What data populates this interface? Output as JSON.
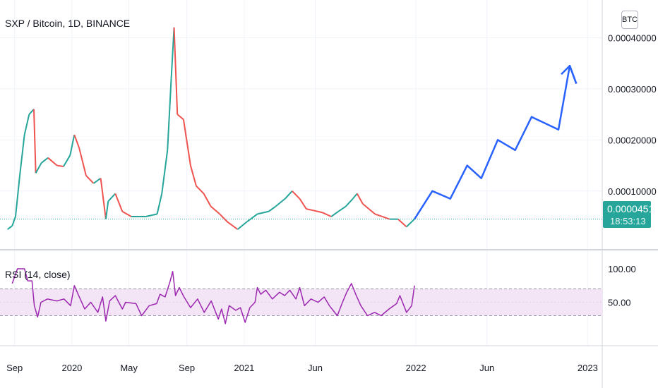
{
  "header": {
    "title": "SXP / Bitcoin, 1D, BINANCE",
    "currency_button": "BTC",
    "price_badge": "0.00004511",
    "countdown": "18:53:13"
  },
  "rsi_panel": {
    "title": "RSI (14, close)",
    "ticks": [
      "100.00",
      "50.00"
    ]
  },
  "colors": {
    "up": "#26a69a",
    "down": "#ef5350",
    "forecast": "#2962ff",
    "rsi_line": "#9c27b0",
    "rsi_band": "#f3e5f5",
    "last_price_line": "#26a69a"
  },
  "chart_data": [
    {
      "type": "line",
      "title": "SXP / Bitcoin, 1D, BINANCE",
      "y_axis_ticks": [
        "0.00040000",
        "0.00030000",
        "0.00020000",
        "0.00010000"
      ],
      "y_range": [
        1e-05,
        0.000424
      ],
      "x_tick_labels": [
        "Sep",
        "2020",
        "May",
        "Sep",
        "2021",
        "Jun",
        "2022",
        "Jun",
        "2023"
      ],
      "x_ticks": [
        "2019-09-01",
        "2020-01-01",
        "2020-05-01",
        "2020-09-01",
        "2021-01-01",
        "2021-06-01",
        "2022-01-01",
        "2022-06-01",
        "2023-01-01"
      ],
      "x_range": [
        "2019-08-01",
        "2023-02-01"
      ],
      "last_price": 4.511e-05,
      "series": [
        {
          "kind": "close",
          "points": [
            [
              "2019-08-17",
              2.5e-05
            ],
            [
              "2019-08-27",
              3.2e-05
            ],
            [
              "2019-09-03",
              5e-05
            ],
            [
              "2019-09-12",
              0.00013
            ],
            [
              "2019-09-22",
              0.00021
            ],
            [
              "2019-10-02",
              0.00025
            ],
            [
              "2019-10-12",
              0.00026
            ],
            [
              "2019-10-16",
              0.000135
            ],
            [
              "2019-10-28",
              0.000155
            ],
            [
              "2019-11-11",
              0.000165
            ],
            [
              "2019-11-30",
              0.00015
            ],
            [
              "2019-12-14",
              0.000148
            ],
            [
              "2019-12-28",
              0.00017
            ],
            [
              "2020-01-06",
              0.00021
            ],
            [
              "2020-01-16",
              0.000185
            ],
            [
              "2020-01-31",
              0.00013
            ],
            [
              "2020-02-16",
              0.000115
            ],
            [
              "2020-03-02",
              0.000125
            ],
            [
              "2020-03-13",
              4.5e-05
            ],
            [
              "2020-03-18",
              8e-05
            ],
            [
              "2020-04-02",
              9.5e-05
            ],
            [
              "2020-04-17",
              6e-05
            ],
            [
              "2020-05-06",
              5e-05
            ],
            [
              "2020-06-06",
              5e-05
            ],
            [
              "2020-06-30",
              5.5e-05
            ],
            [
              "2020-07-10",
              9.5e-05
            ],
            [
              "2020-07-22",
              0.00018
            ],
            [
              "2020-07-30",
              0.00032
            ],
            [
              "2020-08-05",
              0.00042
            ],
            [
              "2020-08-12",
              0.00025
            ],
            [
              "2020-08-25",
              0.00024
            ],
            [
              "2020-09-09",
              0.00015
            ],
            [
              "2020-09-21",
              0.00011
            ],
            [
              "2020-10-07",
              9.5e-05
            ],
            [
              "2020-10-22",
              7e-05
            ],
            [
              "2020-11-10",
              5.5e-05
            ],
            [
              "2020-11-26",
              4e-05
            ],
            [
              "2020-12-18",
              2.5e-05
            ],
            [
              "2021-01-07",
              4e-05
            ],
            [
              "2021-01-29",
              5.5e-05
            ],
            [
              "2021-02-22",
              6e-05
            ],
            [
              "2021-03-09",
              7e-05
            ],
            [
              "2021-03-29",
              8.5e-05
            ],
            [
              "2021-04-13",
              0.0001
            ],
            [
              "2021-04-29",
              8.5e-05
            ],
            [
              "2021-05-13",
              6.5e-05
            ],
            [
              "2021-05-28",
              6.2e-05
            ],
            [
              "2021-06-16",
              5.8e-05
            ],
            [
              "2021-07-05",
              5e-05
            ],
            [
              "2021-07-20",
              6e-05
            ],
            [
              "2021-08-05",
              7e-05
            ],
            [
              "2021-08-20",
              8.5e-05
            ],
            [
              "2021-08-29",
              9.5e-05
            ],
            [
              "2021-09-10",
              7.5e-05
            ],
            [
              "2021-09-23",
              6.5e-05
            ],
            [
              "2021-10-06",
              5.5e-05
            ],
            [
              "2021-10-22",
              5e-05
            ],
            [
              "2021-11-06",
              4.5e-05
            ],
            [
              "2021-11-24",
              4.5e-05
            ],
            [
              "2021-12-12",
              3e-05
            ],
            [
              "2021-12-29",
              4.511e-05
            ]
          ]
        },
        {
          "kind": "forecast",
          "points": [
            [
              "2021-12-29",
              4.511e-05
            ],
            [
              "2022-02-05",
              0.0001
            ],
            [
              "2022-03-15",
              8.5e-05
            ],
            [
              "2022-04-20",
              0.00015
            ],
            [
              "2022-05-20",
              0.000125
            ],
            [
              "2022-06-24",
              0.0002
            ],
            [
              "2022-07-31",
              0.00018
            ],
            [
              "2022-09-04",
              0.000245
            ],
            [
              "2022-10-31",
              0.00022
            ],
            [
              "2022-11-24",
              0.000345
            ],
            [
              "2022-12-08",
              0.00031
            ]
          ]
        }
      ]
    },
    {
      "type": "line",
      "title": "RSI (14, close)",
      "y_axis_ticks": [
        "100.00",
        "50.00"
      ],
      "y_range": [
        0,
        120
      ],
      "band": [
        30,
        70
      ],
      "x_range": [
        "2019-08-01",
        "2023-02-01"
      ],
      "series": [
        {
          "name": "RSI",
          "points": [
            [
              "2019-08-27",
              78
            ],
            [
              "2019-09-07",
              100
            ],
            [
              "2019-09-22",
              100
            ],
            [
              "2019-09-29",
              82
            ],
            [
              "2019-10-08",
              82
            ],
            [
              "2019-10-13",
              45
            ],
            [
              "2019-10-20",
              28
            ],
            [
              "2019-10-27",
              50
            ],
            [
              "2019-11-10",
              55
            ],
            [
              "2019-11-30",
              52
            ],
            [
              "2019-12-15",
              55
            ],
            [
              "2019-12-29",
              45
            ],
            [
              "2020-01-06",
              75
            ],
            [
              "2020-01-14",
              62
            ],
            [
              "2020-01-28",
              40
            ],
            [
              "2020-02-10",
              50
            ],
            [
              "2020-02-25",
              35
            ],
            [
              "2020-03-06",
              58
            ],
            [
              "2020-03-13",
              22
            ],
            [
              "2020-03-21",
              52
            ],
            [
              "2020-04-02",
              60
            ],
            [
              "2020-04-17",
              40
            ],
            [
              "2020-04-24",
              50
            ],
            [
              "2020-05-16",
              48
            ],
            [
              "2020-05-28",
              30
            ],
            [
              "2020-06-13",
              45
            ],
            [
              "2020-06-29",
              48
            ],
            [
              "2020-07-06",
              62
            ],
            [
              "2020-07-17",
              58
            ],
            [
              "2020-07-27",
              80
            ],
            [
              "2020-08-02",
              96
            ],
            [
              "2020-08-08",
              60
            ],
            [
              "2020-08-16",
              72
            ],
            [
              "2020-08-26",
              58
            ],
            [
              "2020-09-09",
              42
            ],
            [
              "2020-09-24",
              55
            ],
            [
              "2020-10-08",
              35
            ],
            [
              "2020-10-23",
              52
            ],
            [
              "2020-11-07",
              25
            ],
            [
              "2020-11-14",
              40
            ],
            [
              "2020-11-22",
              18
            ],
            [
              "2020-11-30",
              45
            ],
            [
              "2020-12-14",
              38
            ],
            [
              "2020-12-24",
              42
            ],
            [
              "2021-01-03",
              20
            ],
            [
              "2021-01-13",
              42
            ],
            [
              "2021-01-24",
              50
            ],
            [
              "2021-01-29",
              72
            ],
            [
              "2021-02-05",
              62
            ],
            [
              "2021-02-16",
              68
            ],
            [
              "2021-03-02",
              55
            ],
            [
              "2021-03-17",
              65
            ],
            [
              "2021-03-28",
              60
            ],
            [
              "2021-04-08",
              68
            ],
            [
              "2021-04-21",
              55
            ],
            [
              "2021-04-29",
              72
            ],
            [
              "2021-05-09",
              45
            ],
            [
              "2021-05-23",
              55
            ],
            [
              "2021-06-07",
              50
            ],
            [
              "2021-06-20",
              58
            ],
            [
              "2021-07-01",
              45
            ],
            [
              "2021-07-18",
              30
            ],
            [
              "2021-07-29",
              50
            ],
            [
              "2021-08-07",
              65
            ],
            [
              "2021-08-17",
              78
            ],
            [
              "2021-08-26",
              62
            ],
            [
              "2021-09-06",
              45
            ],
            [
              "2021-09-20",
              30
            ],
            [
              "2021-10-05",
              35
            ],
            [
              "2021-10-19",
              30
            ],
            [
              "2021-11-05",
              40
            ],
            [
              "2021-11-21",
              48
            ],
            [
              "2021-11-28",
              60
            ],
            [
              "2021-12-12",
              35
            ],
            [
              "2021-12-23",
              45
            ],
            [
              "2021-12-29",
              75
            ]
          ]
        }
      ]
    }
  ]
}
